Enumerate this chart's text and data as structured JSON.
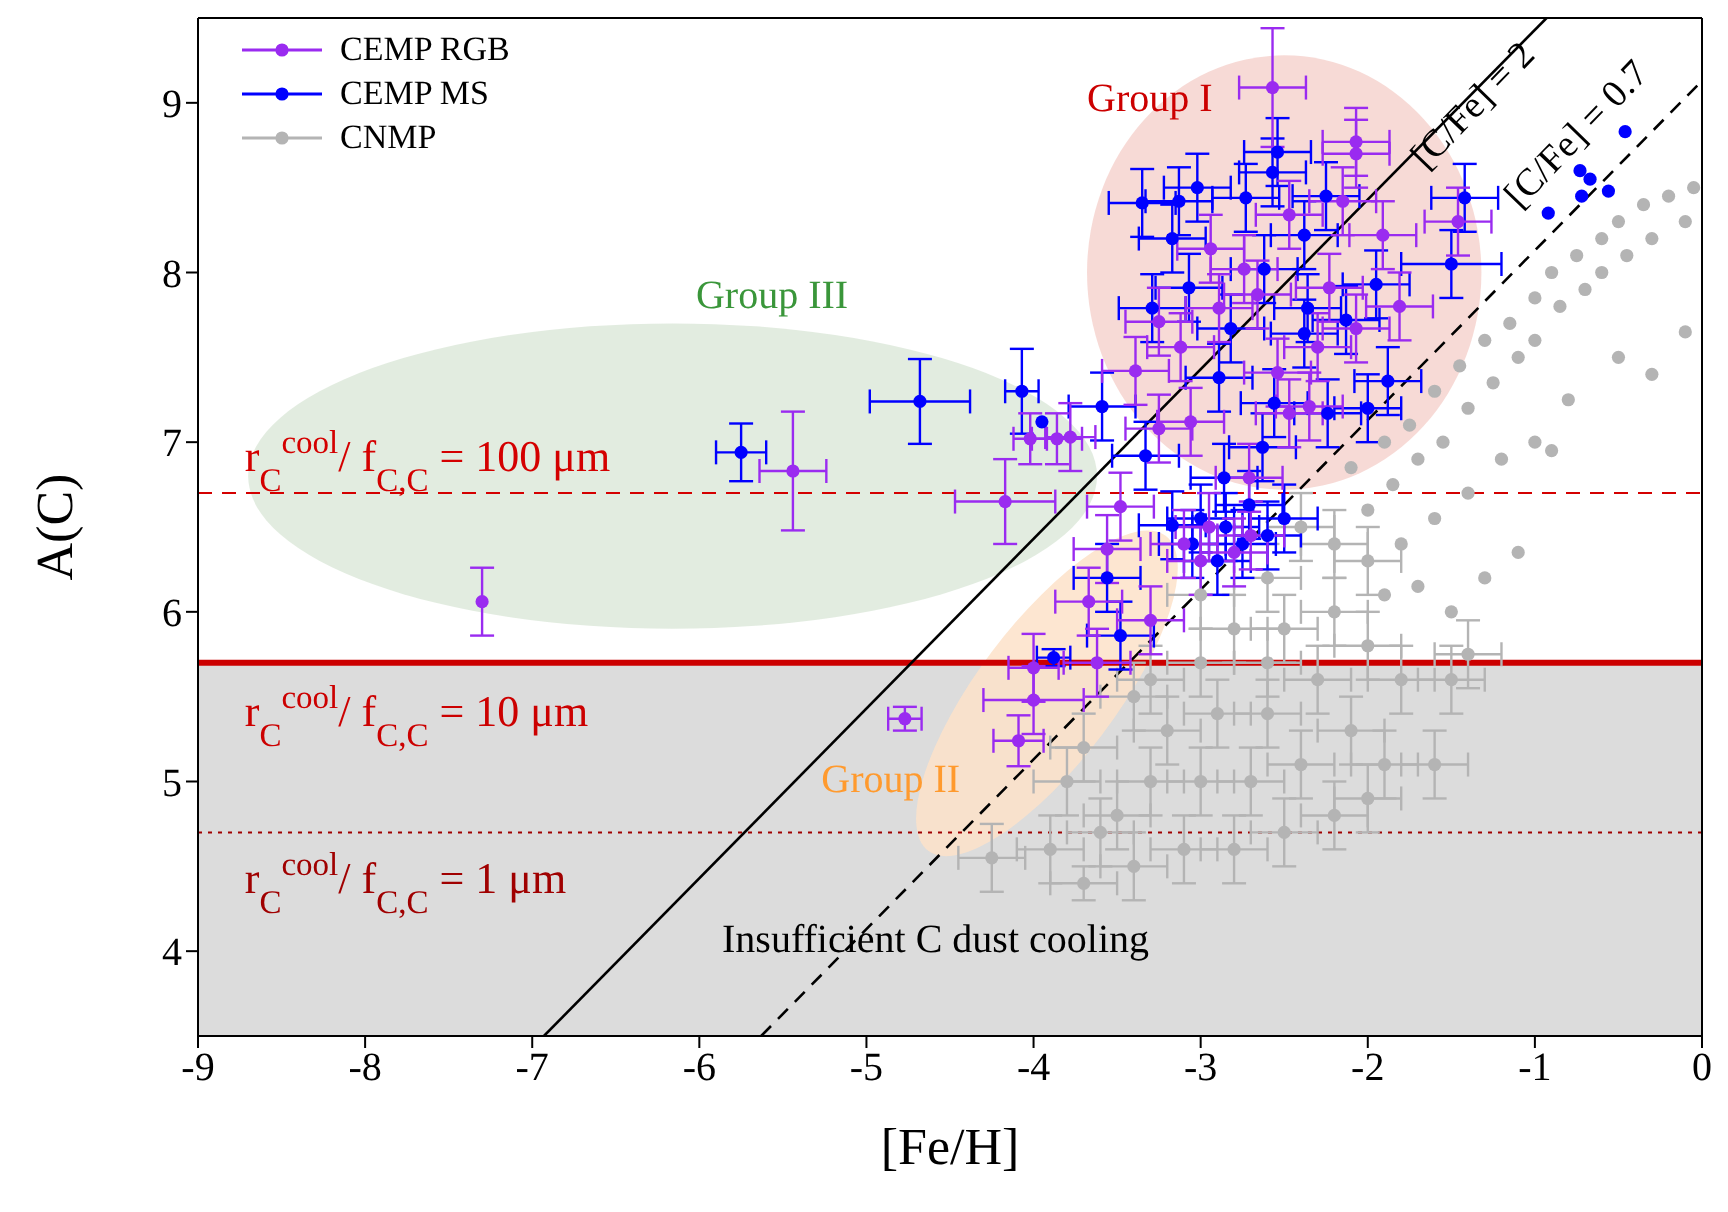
{
  "chart_data": {
    "type": "scatter",
    "xlabel": "[Fe/H]",
    "ylabel": "A(C)",
    "xlim": [
      -9,
      0
    ],
    "xticks": [
      -9,
      -8,
      -7,
      -6,
      -5,
      -4,
      -3,
      -2,
      -1,
      0
    ],
    "ylim": [
      3.5,
      9.5
    ],
    "yticks": [
      4,
      5,
      6,
      7,
      8,
      9
    ],
    "legend": "top left",
    "marker": "circle",
    "annotations": [
      "Group I",
      "Group II",
      "Group III",
      "r$_{C}$$^{cool}$/ f$_{C,C}$ = 100 μm",
      "r$_{C}$$^{cool}$/ f$_{C,C}$ = 10 μm",
      "r$_{C}$$^{cool}$/ f$_{C,C}$ = 1 μm"
    ],
    "bands": [
      {
        "axis": "y",
        "from": 3.5,
        "to": 5.7,
        "label": "Insufficient C dust cooling",
        "color": "#dcdcdc"
      }
    ],
    "ref_lines": [
      {
        "axis": "y",
        "value": 6.7,
        "color": "#d40000",
        "line_style": "dashed"
      },
      {
        "axis": "y",
        "value": 5.7,
        "color": "#cc0000",
        "line_style": "solid"
      },
      {
        "axis": "y",
        "value": 4.7,
        "color": "#a00000",
        "line_style": "dotted"
      }
    ],
    "series": [
      {
        "name": "CEMP RGB",
        "color": "#9a2bf0",
        "x": [
          -7.3,
          -5.44,
          -4.17,
          -4.02,
          -3.86,
          -3.78,
          -4.77,
          -4.0,
          -4.09,
          -4.0,
          -3.48,
          -3.56,
          -3.67,
          -3.3,
          -3.62,
          -2.57,
          -2.07,
          -2.07,
          -1.46,
          -3.25,
          -3.06,
          -3.39,
          -3.25,
          -2.89,
          -2.66,
          -2.54,
          -2.35,
          -2.07,
          -1.81,
          -2.94,
          -2.47,
          -2.23,
          -1.91,
          -2.15,
          -2.71,
          -2.47,
          -3.12,
          -2.74,
          -2.3,
          -3.1,
          -2.95,
          -2.8,
          -3.0,
          -2.7
        ],
        "values": [
          6.06,
          6.83,
          6.65,
          7.02,
          7.02,
          7.03,
          5.37,
          5.48,
          5.24,
          5.67,
          6.62,
          6.37,
          6.06,
          5.95,
          5.7,
          9.09,
          8.77,
          8.7,
          8.3,
          7.08,
          7.12,
          7.42,
          7.71,
          7.79,
          7.87,
          7.41,
          7.21,
          7.67,
          7.8,
          8.14,
          8.34,
          7.91,
          8.22,
          8.42,
          6.79,
          7.17,
          7.56,
          8.02,
          7.56,
          6.4,
          6.5,
          6.35,
          6.3,
          6.45
        ],
        "errors": [
          0.2,
          0.35,
          0.25,
          0.15,
          0.15,
          0.2,
          0.07,
          0.2,
          0.15,
          0.2,
          0.2,
          0.2,
          0.2,
          0.2,
          0.2,
          0.35,
          0.2,
          0.2,
          0.2,
          0.2,
          0.2,
          0.2,
          0.2,
          0.2,
          0.2,
          0.2,
          0.2,
          0.2,
          0.2,
          0.2,
          0.2,
          0.2,
          0.2,
          0.2,
          0.2,
          0.2,
          0.2,
          0.2,
          0.2,
          0.2,
          0.2,
          0.2,
          0.2,
          0.2
        ],
        "xerrors": [
          null,
          0.2,
          0.3,
          0.1,
          0.15,
          0.15,
          0.1,
          0.3,
          0.15,
          0.15,
          0.2,
          0.2,
          0.2,
          0.2,
          0.2,
          0.2,
          0.2,
          0.2,
          0.2,
          0.2,
          0.2,
          0.2,
          0.2,
          0.2,
          0.2,
          0.2,
          0.2,
          0.2,
          0.2,
          0.2,
          0.2,
          0.2,
          0.2,
          0.2,
          0.2,
          0.2,
          0.2,
          0.2,
          0.2,
          0.2,
          0.2,
          0.2,
          0.2,
          0.2
        ]
      },
      {
        "name": "CEMP MS",
        "color": "#0000ff",
        "x": [
          -5.75,
          -4.68,
          -4.07,
          -3.95,
          -3.88,
          -3.56,
          -3.48,
          -3.59,
          -0.46,
          -0.92,
          -0.73,
          -0.67,
          -0.72,
          -0.56,
          -1.42,
          -1.5,
          -3.35,
          -3.02,
          -2.73,
          -2.54,
          -2.57,
          -2.25,
          -3.17,
          -3.13,
          -2.38,
          -2.62,
          -3.29,
          -3.07,
          -2.82,
          -2.36,
          -2.13,
          -1.95,
          -2.89,
          -2.38,
          -2.24,
          -1.88,
          -2.0,
          -2.56,
          -2.63,
          -3.33,
          -2.86,
          -2.71,
          -3.17,
          -3.05,
          -2.9,
          -2.75,
          -2.6,
          -2.5,
          -2.85,
          -3.0
        ],
        "values": [
          6.94,
          7.24,
          7.3,
          7.12,
          5.73,
          6.2,
          5.86,
          7.21,
          8.83,
          8.35,
          8.6,
          8.55,
          8.45,
          8.48,
          8.44,
          8.05,
          8.41,
          8.5,
          8.44,
          8.71,
          8.59,
          8.45,
          8.2,
          8.42,
          8.22,
          8.02,
          7.79,
          7.91,
          7.67,
          7.79,
          7.72,
          7.93,
          7.38,
          7.64,
          7.17,
          7.36,
          7.2,
          7.23,
          6.97,
          6.92,
          6.79,
          6.63,
          6.51,
          6.4,
          6.3,
          6.4,
          6.45,
          6.55,
          6.5,
          6.55
        ],
        "errors": [
          0.17,
          0.25,
          0.25,
          null,
          0.05,
          0.2,
          0.2,
          0.2,
          null,
          null,
          null,
          null,
          null,
          null,
          0.2,
          0.2,
          0.2,
          0.2,
          0.2,
          0.2,
          0.2,
          0.2,
          0.2,
          0.2,
          0.2,
          0.2,
          0.2,
          0.2,
          0.2,
          0.2,
          0.2,
          0.2,
          0.2,
          0.2,
          0.2,
          0.2,
          0.2,
          0.2,
          0.2,
          0.2,
          0.2,
          0.2,
          0.2,
          0.2,
          0.2,
          0.2,
          0.2,
          0.2,
          0.2,
          0.2
        ],
        "xerrors": [
          0.15,
          0.3,
          0.1,
          null,
          0.1,
          0.2,
          0.2,
          0.2,
          null,
          null,
          null,
          null,
          null,
          null,
          0.2,
          0.3,
          0.2,
          0.2,
          0.2,
          0.2,
          0.2,
          0.2,
          0.2,
          0.2,
          0.2,
          0.2,
          0.2,
          0.2,
          0.2,
          0.2,
          0.2,
          0.2,
          0.2,
          0.2,
          0.2,
          0.2,
          0.2,
          0.2,
          0.2,
          0.2,
          0.2,
          0.2,
          0.2,
          0.2,
          0.2,
          0.2,
          0.2,
          0.2,
          0.2,
          0.2
        ]
      },
      {
        "name": "CNMP",
        "color": "#b4b4b4",
        "x": [
          -0.05,
          -0.1,
          -0.2,
          -0.3,
          -0.35,
          -0.45,
          -0.5,
          -0.6,
          -0.6,
          -0.7,
          -0.75,
          -0.85,
          -0.9,
          -1.0,
          -1.0,
          -1.1,
          -1.15,
          -1.25,
          -1.3,
          -1.4,
          -1.45,
          -1.55,
          -1.6,
          -1.7,
          -1.75,
          -1.85,
          -1.9,
          -2.0,
          -2.1,
          -0.1,
          -0.3,
          -0.5,
          -0.8,
          -1.0,
          -1.2,
          -1.4,
          -1.6,
          -1.8,
          -0.9,
          -1.1,
          -1.3,
          -1.5,
          -1.7,
          -1.9,
          -2.0,
          -2.2,
          -2.4,
          -2.6,
          -2.2,
          -2.0,
          -1.8,
          -2.5,
          -2.8,
          -3.0,
          -2.3,
          -2.6,
          -2.9,
          -3.2,
          -2.1,
          -1.9,
          -1.6,
          -2.4,
          -2.7,
          -3.0,
          -3.3,
          -3.5,
          -2.2,
          -2.5,
          -2.8,
          -3.1,
          -3.4,
          -3.7,
          -2.0,
          -3.6,
          -3.9,
          -4.25,
          -1.4,
          -2.6,
          -3.3,
          -3.0,
          -3.4,
          -3.7,
          -3.8,
          -1.5
        ],
        "values": [
          8.5,
          8.3,
          8.45,
          8.2,
          8.4,
          8.1,
          8.3,
          8.0,
          8.2,
          7.9,
          8.1,
          7.8,
          8.0,
          7.6,
          7.85,
          7.5,
          7.7,
          7.35,
          7.6,
          7.2,
          7.45,
          7.0,
          7.3,
          6.9,
          7.1,
          6.75,
          7.0,
          6.6,
          6.85,
          7.65,
          7.4,
          7.5,
          7.25,
          7.0,
          6.9,
          6.7,
          6.55,
          6.4,
          6.95,
          6.35,
          6.2,
          6.0,
          6.15,
          6.1,
          6.3,
          6.4,
          6.5,
          6.2,
          6.0,
          5.8,
          5.6,
          5.9,
          5.9,
          5.7,
          5.6,
          5.4,
          5.4,
          5.3,
          5.3,
          5.1,
          5.1,
          5.1,
          5.0,
          5.0,
          5.0,
          4.8,
          4.8,
          4.7,
          4.6,
          4.6,
          4.5,
          4.4,
          4.9,
          4.7,
          4.6,
          4.55,
          5.75,
          5.7,
          5.6,
          6.1,
          5.5,
          5.2,
          5.0,
          5.6
        ],
        "errors": [
          null,
          null,
          null,
          null,
          null,
          null,
          null,
          null,
          null,
          null,
          null,
          null,
          null,
          null,
          null,
          null,
          null,
          null,
          null,
          null,
          null,
          null,
          null,
          null,
          null,
          null,
          null,
          null,
          null,
          null,
          null,
          null,
          null,
          null,
          null,
          null,
          null,
          null,
          null,
          null,
          null,
          null,
          null,
          null,
          0.2,
          0.2,
          0.2,
          0.2,
          0.2,
          0.2,
          0.2,
          0.2,
          0.2,
          0.2,
          0.2,
          0.2,
          0.2,
          0.2,
          0.2,
          0.2,
          0.2,
          0.2,
          0.2,
          0.2,
          0.2,
          0.2,
          0.2,
          0.2,
          0.2,
          0.2,
          0.2,
          0.1,
          0.2,
          0.2,
          0.2,
          0.2,
          0.2,
          0.2,
          0.2,
          0.2,
          0.2,
          0.2,
          0.2,
          0.2
        ],
        "xerrors": [
          null,
          null,
          null,
          null,
          null,
          null,
          null,
          null,
          null,
          null,
          null,
          null,
          null,
          null,
          null,
          null,
          null,
          null,
          null,
          null,
          null,
          null,
          null,
          null,
          null,
          null,
          null,
          null,
          null,
          null,
          null,
          null,
          null,
          null,
          null,
          null,
          null,
          null,
          null,
          null,
          null,
          null,
          null,
          null,
          0.2,
          0.2,
          0.2,
          0.2,
          0.2,
          0.2,
          0.2,
          0.2,
          0.2,
          0.2,
          0.2,
          0.2,
          0.2,
          0.2,
          0.2,
          0.2,
          0.2,
          0.2,
          0.2,
          0.2,
          0.2,
          0.2,
          0.2,
          0.2,
          0.2,
          0.2,
          0.2,
          0.2,
          0.2,
          0.2,
          0.2,
          0.2,
          0.2,
          0.2,
          0.2,
          0.2,
          0.2,
          0.2,
          0.2,
          0.2
        ]
      },
      {
        "name": "[C/Fe] = 2",
        "type": "line",
        "color": "#000000",
        "line_style": "solid",
        "marker": "none",
        "x": [
          -6.93,
          -0.93
        ],
        "values": [
          3.5,
          9.5
        ]
      },
      {
        "name": "[C/Fe] = 0.7",
        "type": "line",
        "color": "#000000",
        "line_style": "dashed",
        "marker": "none",
        "x": [
          -5.63,
          0
        ],
        "values": [
          3.5,
          9.13
        ]
      }
    ]
  }
}
